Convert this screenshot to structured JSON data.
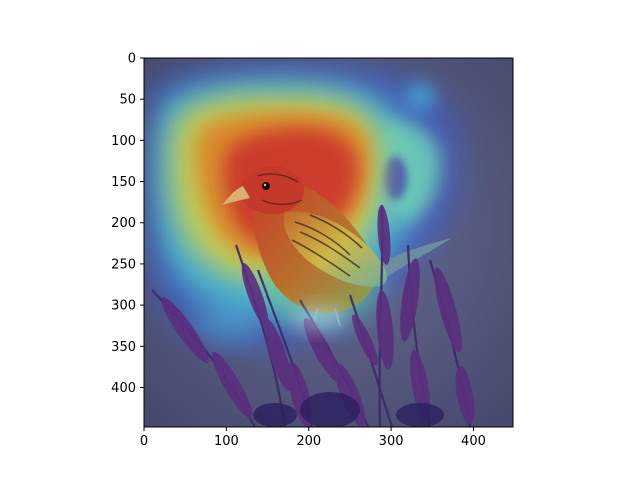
{
  "figure": {
    "background": "#ffffff",
    "scene_description_icon": "bird-on-seed-heads-with-jet-heatmap-overlay",
    "colors": {
      "jet_red": "#e0301e",
      "jet_orange": "#f08a1c",
      "jet_yellow": "#e8e23a",
      "jet_green": "#7fe08a",
      "jet_cyan": "#3fd0e8",
      "jet_blue": "#3040c8",
      "backdrop": "#5b5f85"
    }
  },
  "axes": {
    "x_ticks": [
      {
        "value": 0,
        "label": "0"
      },
      {
        "value": 100,
        "label": "100"
      },
      {
        "value": 200,
        "label": "200"
      },
      {
        "value": 300,
        "label": "300"
      },
      {
        "value": 400,
        "label": "400"
      }
    ],
    "y_ticks": [
      {
        "value": 0,
        "label": "0"
      },
      {
        "value": 50,
        "label": "50"
      },
      {
        "value": 100,
        "label": "100"
      },
      {
        "value": 150,
        "label": "150"
      },
      {
        "value": 200,
        "label": "200"
      },
      {
        "value": 250,
        "label": "250"
      },
      {
        "value": 300,
        "label": "300"
      },
      {
        "value": 350,
        "label": "350"
      },
      {
        "value": 400,
        "label": "400"
      }
    ],
    "xlim": [
      0,
      448
    ],
    "ylim": [
      448,
      0
    ]
  }
}
